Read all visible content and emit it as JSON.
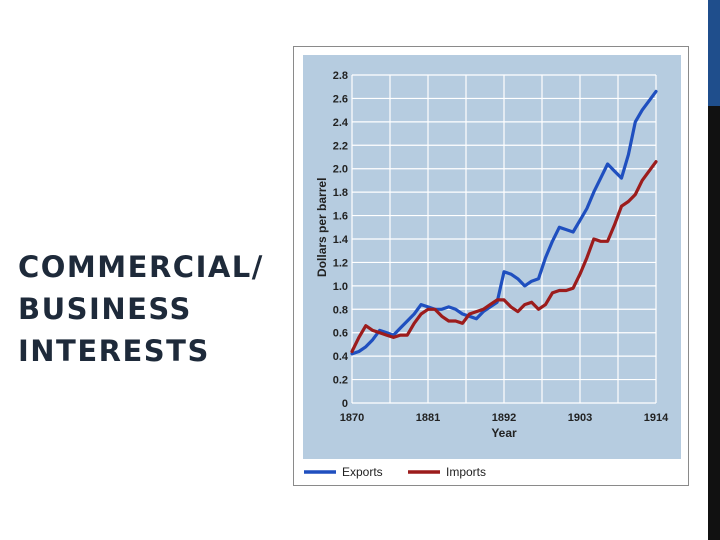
{
  "slide": {
    "title_lines": [
      "COMMERCIAL/",
      "BUSINESS",
      "INTERESTS"
    ],
    "accent_color": "#1f4e8c",
    "dark_bar_color": "#111111"
  },
  "chart_data": {
    "type": "line",
    "title": "",
    "xlabel": "Year",
    "ylabel": "Dollars per barrel",
    "xlim": [
      1870,
      1914
    ],
    "ylim": [
      0,
      2.8
    ],
    "x_ticks": [
      "1870",
      "1881",
      "1892",
      "1903",
      "1914"
    ],
    "y_ticks": [
      "0",
      "0.2",
      "0.4",
      "0.6",
      "0.8",
      "1.0",
      "1.2",
      "1.4",
      "1.6",
      "1.8",
      "2.0",
      "2.2",
      "2.4",
      "2.6",
      "2.8"
    ],
    "grid": true,
    "legend": "bottom",
    "background_color": "#b6cce0",
    "x": [
      1870,
      1871,
      1872,
      1873,
      1874,
      1875,
      1876,
      1877,
      1878,
      1879,
      1880,
      1881,
      1882,
      1883,
      1884,
      1885,
      1886,
      1887,
      1888,
      1889,
      1890,
      1891,
      1892,
      1893,
      1894,
      1895,
      1896,
      1897,
      1898,
      1899,
      1900,
      1901,
      1902,
      1903,
      1904,
      1905,
      1906,
      1907,
      1908,
      1909,
      1910,
      1911,
      1912,
      1913,
      1914
    ],
    "series": [
      {
        "name": "Exports",
        "color": "#1f4fbf",
        "values": [
          0.42,
          0.44,
          0.48,
          0.54,
          0.62,
          0.6,
          0.58,
          0.64,
          0.7,
          0.76,
          0.84,
          0.82,
          0.8,
          0.8,
          0.82,
          0.8,
          0.76,
          0.74,
          0.72,
          0.78,
          0.82,
          0.86,
          1.12,
          1.1,
          1.06,
          1.0,
          1.04,
          1.06,
          1.24,
          1.38,
          1.5,
          1.48,
          1.46,
          1.56,
          1.66,
          1.8,
          1.92,
          2.04,
          1.98,
          1.92,
          2.12,
          2.4,
          2.5,
          2.58,
          2.66
        ]
      },
      {
        "name": "Imports",
        "color": "#9c1c1c",
        "values": [
          0.44,
          0.56,
          0.66,
          0.62,
          0.6,
          0.58,
          0.56,
          0.58,
          0.58,
          0.68,
          0.76,
          0.8,
          0.8,
          0.74,
          0.7,
          0.7,
          0.68,
          0.76,
          0.78,
          0.8,
          0.84,
          0.88,
          0.88,
          0.82,
          0.78,
          0.84,
          0.86,
          0.8,
          0.84,
          0.94,
          0.96,
          0.96,
          0.98,
          1.1,
          1.24,
          1.4,
          1.38,
          1.38,
          1.52,
          1.68,
          1.72,
          1.78,
          1.9,
          1.98,
          2.06
        ]
      }
    ]
  }
}
